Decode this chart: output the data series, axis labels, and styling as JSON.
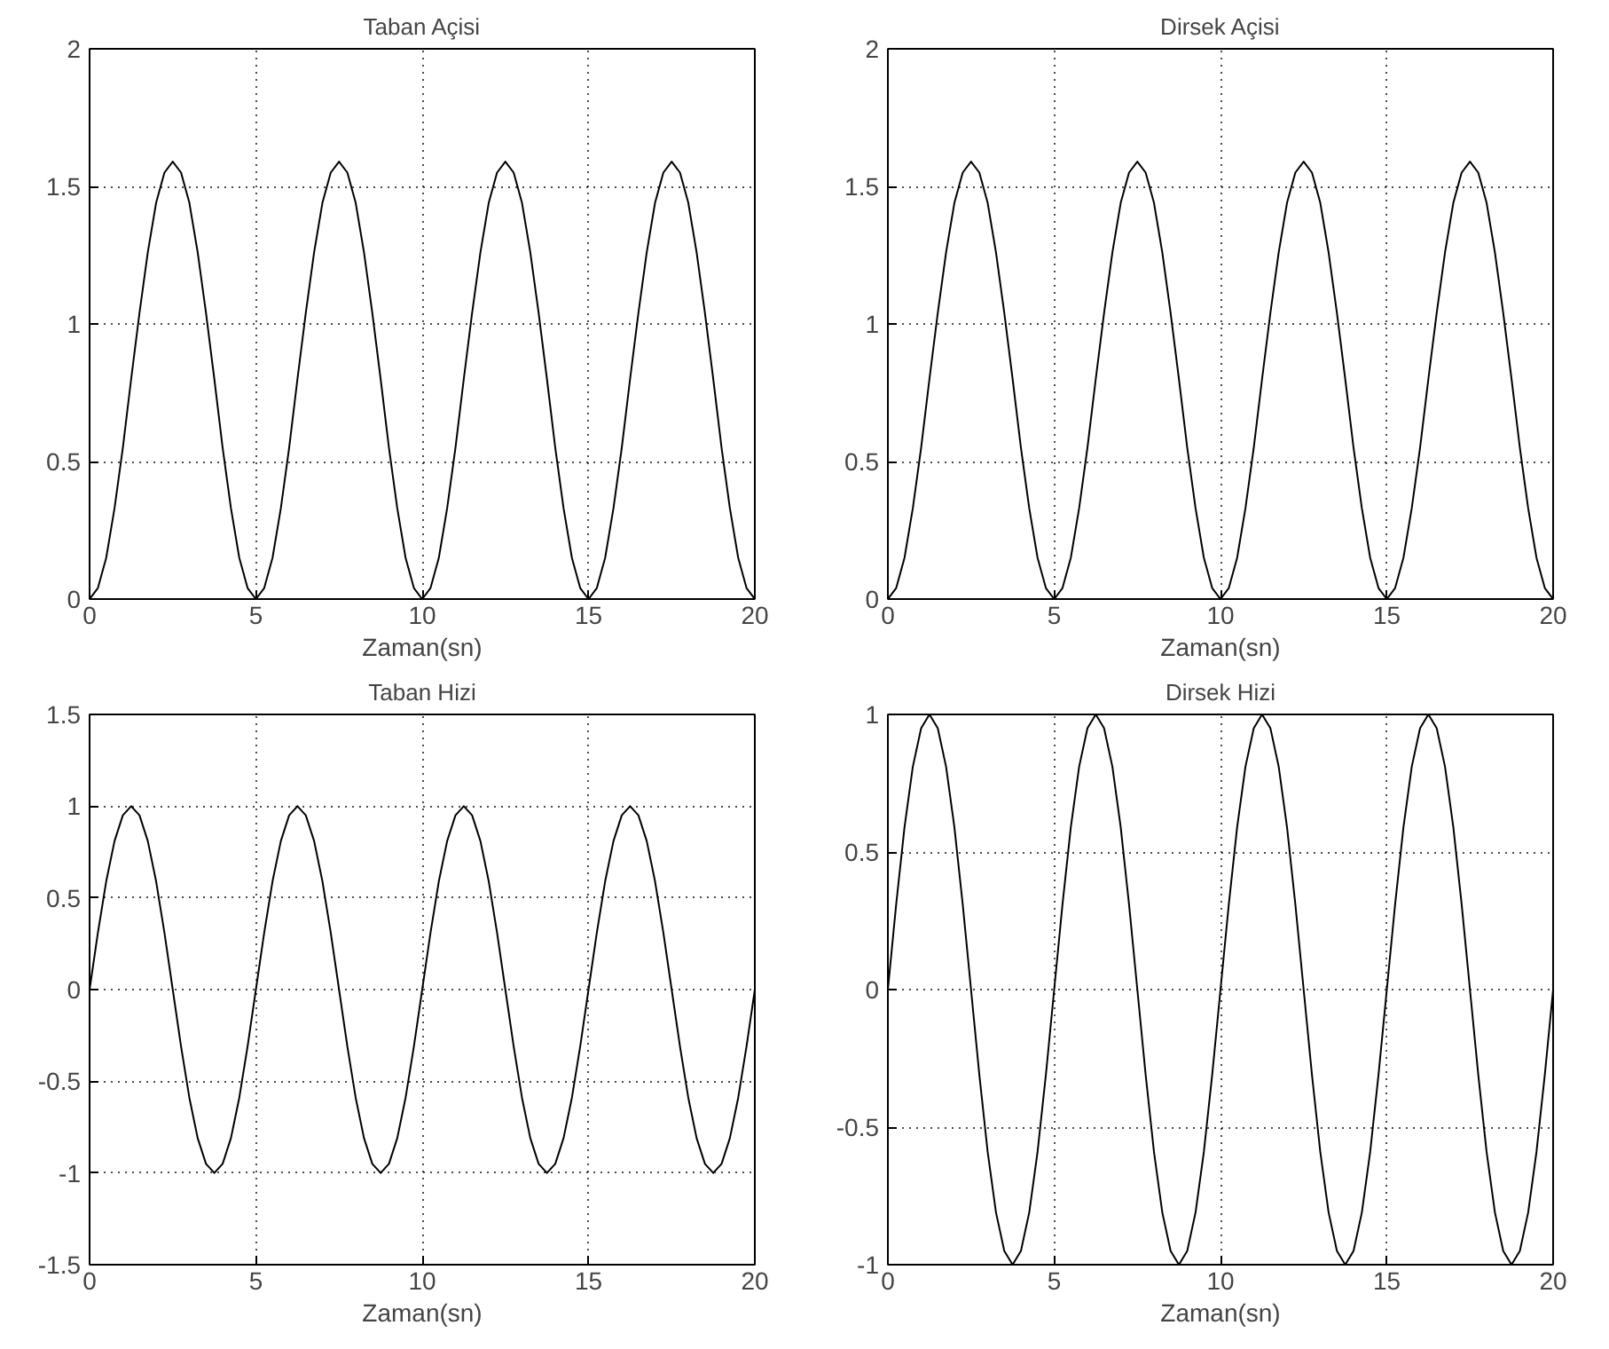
{
  "chart_data": [
    {
      "type": "line",
      "title": "Taban Açisi",
      "xlabel": "Zaman(sn)",
      "color": "#000000",
      "grid": true,
      "xlim": [
        0,
        20
      ],
      "ylim": [
        0,
        2
      ],
      "xticks": [
        0,
        5,
        10,
        15,
        20
      ],
      "yticks": [
        0,
        0.5,
        1,
        1.5,
        2
      ],
      "x": [
        0,
        0.25,
        0.5,
        0.75,
        1,
        1.25,
        1.5,
        1.75,
        2,
        2.25,
        2.5,
        2.75,
        3,
        3.25,
        3.5,
        3.75,
        4,
        4.25,
        4.5,
        4.75,
        5,
        5.25,
        5.5,
        5.75,
        6,
        6.25,
        6.5,
        6.75,
        7,
        7.25,
        7.5,
        7.75,
        8,
        8.25,
        8.5,
        8.75,
        9,
        9.25,
        9.5,
        9.75,
        10,
        10.25,
        10.5,
        10.75,
        11,
        11.25,
        11.5,
        11.75,
        12,
        12.25,
        12.5,
        12.75,
        13,
        13.25,
        13.5,
        13.75,
        14,
        14.25,
        14.5,
        14.75,
        15,
        15.25,
        15.5,
        15.75,
        16,
        16.25,
        16.5,
        16.75,
        17,
        17.25,
        17.5,
        17.75,
        18,
        18.25,
        18.5,
        18.75,
        19,
        19.25,
        19.5,
        19.75,
        20
      ],
      "values": [
        0,
        0.04,
        0.15,
        0.33,
        0.55,
        0.8,
        1.04,
        1.26,
        1.44,
        1.55,
        1.59,
        1.55,
        1.44,
        1.26,
        1.04,
        0.8,
        0.55,
        0.33,
        0.15,
        0.04,
        0,
        0.04,
        0.15,
        0.33,
        0.55,
        0.8,
        1.04,
        1.26,
        1.44,
        1.55,
        1.59,
        1.55,
        1.44,
        1.26,
        1.04,
        0.8,
        0.55,
        0.33,
        0.15,
        0.04,
        0,
        0.04,
        0.15,
        0.33,
        0.55,
        0.8,
        1.04,
        1.26,
        1.44,
        1.55,
        1.59,
        1.55,
        1.44,
        1.26,
        1.04,
        0.8,
        0.55,
        0.33,
        0.15,
        0.04,
        0,
        0.04,
        0.15,
        0.33,
        0.55,
        0.8,
        1.04,
        1.26,
        1.44,
        1.55,
        1.59,
        1.55,
        1.44,
        1.26,
        1.04,
        0.8,
        0.55,
        0.33,
        0.15,
        0.04,
        0
      ]
    },
    {
      "type": "line",
      "title": "Dirsek Açisi",
      "xlabel": "Zaman(sn)",
      "color": "#000000",
      "grid": true,
      "xlim": [
        0,
        20
      ],
      "ylim": [
        0,
        2
      ],
      "xticks": [
        0,
        5,
        10,
        15,
        20
      ],
      "yticks": [
        0,
        0.5,
        1,
        1.5,
        2
      ],
      "x": [
        0,
        0.25,
        0.5,
        0.75,
        1,
        1.25,
        1.5,
        1.75,
        2,
        2.25,
        2.5,
        2.75,
        3,
        3.25,
        3.5,
        3.75,
        4,
        4.25,
        4.5,
        4.75,
        5,
        5.25,
        5.5,
        5.75,
        6,
        6.25,
        6.5,
        6.75,
        7,
        7.25,
        7.5,
        7.75,
        8,
        8.25,
        8.5,
        8.75,
        9,
        9.25,
        9.5,
        9.75,
        10,
        10.25,
        10.5,
        10.75,
        11,
        11.25,
        11.5,
        11.75,
        12,
        12.25,
        12.5,
        12.75,
        13,
        13.25,
        13.5,
        13.75,
        14,
        14.25,
        14.5,
        14.75,
        15,
        15.25,
        15.5,
        15.75,
        16,
        16.25,
        16.5,
        16.75,
        17,
        17.25,
        17.5,
        17.75,
        18,
        18.25,
        18.5,
        18.75,
        19,
        19.25,
        19.5,
        19.75,
        20
      ],
      "values": [
        0,
        0.04,
        0.15,
        0.33,
        0.55,
        0.8,
        1.04,
        1.26,
        1.44,
        1.55,
        1.59,
        1.55,
        1.44,
        1.26,
        1.04,
        0.8,
        0.55,
        0.33,
        0.15,
        0.04,
        0,
        0.04,
        0.15,
        0.33,
        0.55,
        0.8,
        1.04,
        1.26,
        1.44,
        1.55,
        1.59,
        1.55,
        1.44,
        1.26,
        1.04,
        0.8,
        0.55,
        0.33,
        0.15,
        0.04,
        0,
        0.04,
        0.15,
        0.33,
        0.55,
        0.8,
        1.04,
        1.26,
        1.44,
        1.55,
        1.59,
        1.55,
        1.44,
        1.26,
        1.04,
        0.8,
        0.55,
        0.33,
        0.15,
        0.04,
        0,
        0.04,
        0.15,
        0.33,
        0.55,
        0.8,
        1.04,
        1.26,
        1.44,
        1.55,
        1.59,
        1.55,
        1.44,
        1.26,
        1.04,
        0.8,
        0.55,
        0.33,
        0.15,
        0.04,
        0
      ]
    },
    {
      "type": "line",
      "title": "Taban Hizi",
      "xlabel": "Zaman(sn)",
      "color": "#000000",
      "grid": true,
      "xlim": [
        0,
        20
      ],
      "ylim": [
        -1.5,
        1.5
      ],
      "xticks": [
        0,
        5,
        10,
        15,
        20
      ],
      "yticks": [
        -1.5,
        -1,
        -0.5,
        0,
        0.5,
        1,
        1.5
      ],
      "x": [
        0,
        0.25,
        0.5,
        0.75,
        1,
        1.25,
        1.5,
        1.75,
        2,
        2.25,
        2.5,
        2.75,
        3,
        3.25,
        3.5,
        3.75,
        4,
        4.25,
        4.5,
        4.75,
        5,
        5.25,
        5.5,
        5.75,
        6,
        6.25,
        6.5,
        6.75,
        7,
        7.25,
        7.5,
        7.75,
        8,
        8.25,
        8.5,
        8.75,
        9,
        9.25,
        9.5,
        9.75,
        10,
        10.25,
        10.5,
        10.75,
        11,
        11.25,
        11.5,
        11.75,
        12,
        12.25,
        12.5,
        12.75,
        13,
        13.25,
        13.5,
        13.75,
        14,
        14.25,
        14.5,
        14.75,
        15,
        15.25,
        15.5,
        15.75,
        16,
        16.25,
        16.5,
        16.75,
        17,
        17.25,
        17.5,
        17.75,
        18,
        18.25,
        18.5,
        18.75,
        19,
        19.25,
        19.5,
        19.75,
        20
      ],
      "values": [
        0,
        0.31,
        0.59,
        0.81,
        0.95,
        1,
        0.95,
        0.81,
        0.59,
        0.31,
        0,
        -0.31,
        -0.59,
        -0.81,
        -0.95,
        -1,
        -0.95,
        -0.81,
        -0.59,
        -0.31,
        0,
        0.31,
        0.59,
        0.81,
        0.95,
        1,
        0.95,
        0.81,
        0.59,
        0.31,
        0,
        -0.31,
        -0.59,
        -0.81,
        -0.95,
        -1,
        -0.95,
        -0.81,
        -0.59,
        -0.31,
        0,
        0.31,
        0.59,
        0.81,
        0.95,
        1,
        0.95,
        0.81,
        0.59,
        0.31,
        0,
        -0.31,
        -0.59,
        -0.81,
        -0.95,
        -1,
        -0.95,
        -0.81,
        -0.59,
        -0.31,
        0,
        0.31,
        0.59,
        0.81,
        0.95,
        1,
        0.95,
        0.81,
        0.59,
        0.31,
        0,
        -0.31,
        -0.59,
        -0.81,
        -0.95,
        -1,
        -0.95,
        -0.81,
        -0.59,
        -0.31,
        0
      ]
    },
    {
      "type": "line",
      "title": "Dirsek Hizi",
      "xlabel": "Zaman(sn)",
      "color": "#000000",
      "grid": true,
      "xlim": [
        0,
        20
      ],
      "ylim": [
        -1,
        1
      ],
      "xticks": [
        0,
        5,
        10,
        15,
        20
      ],
      "yticks": [
        -1,
        -0.5,
        0,
        0.5,
        1
      ],
      "x": [
        0,
        0.25,
        0.5,
        0.75,
        1,
        1.25,
        1.5,
        1.75,
        2,
        2.25,
        2.5,
        2.75,
        3,
        3.25,
        3.5,
        3.75,
        4,
        4.25,
        4.5,
        4.75,
        5,
        5.25,
        5.5,
        5.75,
        6,
        6.25,
        6.5,
        6.75,
        7,
        7.25,
        7.5,
        7.75,
        8,
        8.25,
        8.5,
        8.75,
        9,
        9.25,
        9.5,
        9.75,
        10,
        10.25,
        10.5,
        10.75,
        11,
        11.25,
        11.5,
        11.75,
        12,
        12.25,
        12.5,
        12.75,
        13,
        13.25,
        13.5,
        13.75,
        14,
        14.25,
        14.5,
        14.75,
        15,
        15.25,
        15.5,
        15.75,
        16,
        16.25,
        16.5,
        16.75,
        17,
        17.25,
        17.5,
        17.75,
        18,
        18.25,
        18.5,
        18.75,
        19,
        19.25,
        19.5,
        19.75,
        20
      ],
      "values": [
        0,
        0.31,
        0.59,
        0.81,
        0.95,
        1,
        0.95,
        0.81,
        0.59,
        0.31,
        0,
        -0.31,
        -0.59,
        -0.81,
        -0.95,
        -1,
        -0.95,
        -0.81,
        -0.59,
        -0.31,
        0,
        0.31,
        0.59,
        0.81,
        0.95,
        1,
        0.95,
        0.81,
        0.59,
        0.31,
        0,
        -0.31,
        -0.59,
        -0.81,
        -0.95,
        -1,
        -0.95,
        -0.81,
        -0.59,
        -0.31,
        0,
        0.31,
        0.59,
        0.81,
        0.95,
        1,
        0.95,
        0.81,
        0.59,
        0.31,
        0,
        -0.31,
        -0.59,
        -0.81,
        -0.95,
        -1,
        -0.95,
        -0.81,
        -0.59,
        -0.31,
        0,
        0.31,
        0.59,
        0.81,
        0.95,
        1,
        0.95,
        0.81,
        0.59,
        0.31,
        0,
        -0.31,
        -0.59,
        -0.81,
        -0.95,
        -1,
        -0.95,
        -0.81,
        -0.59,
        -0.31,
        0
      ]
    }
  ]
}
